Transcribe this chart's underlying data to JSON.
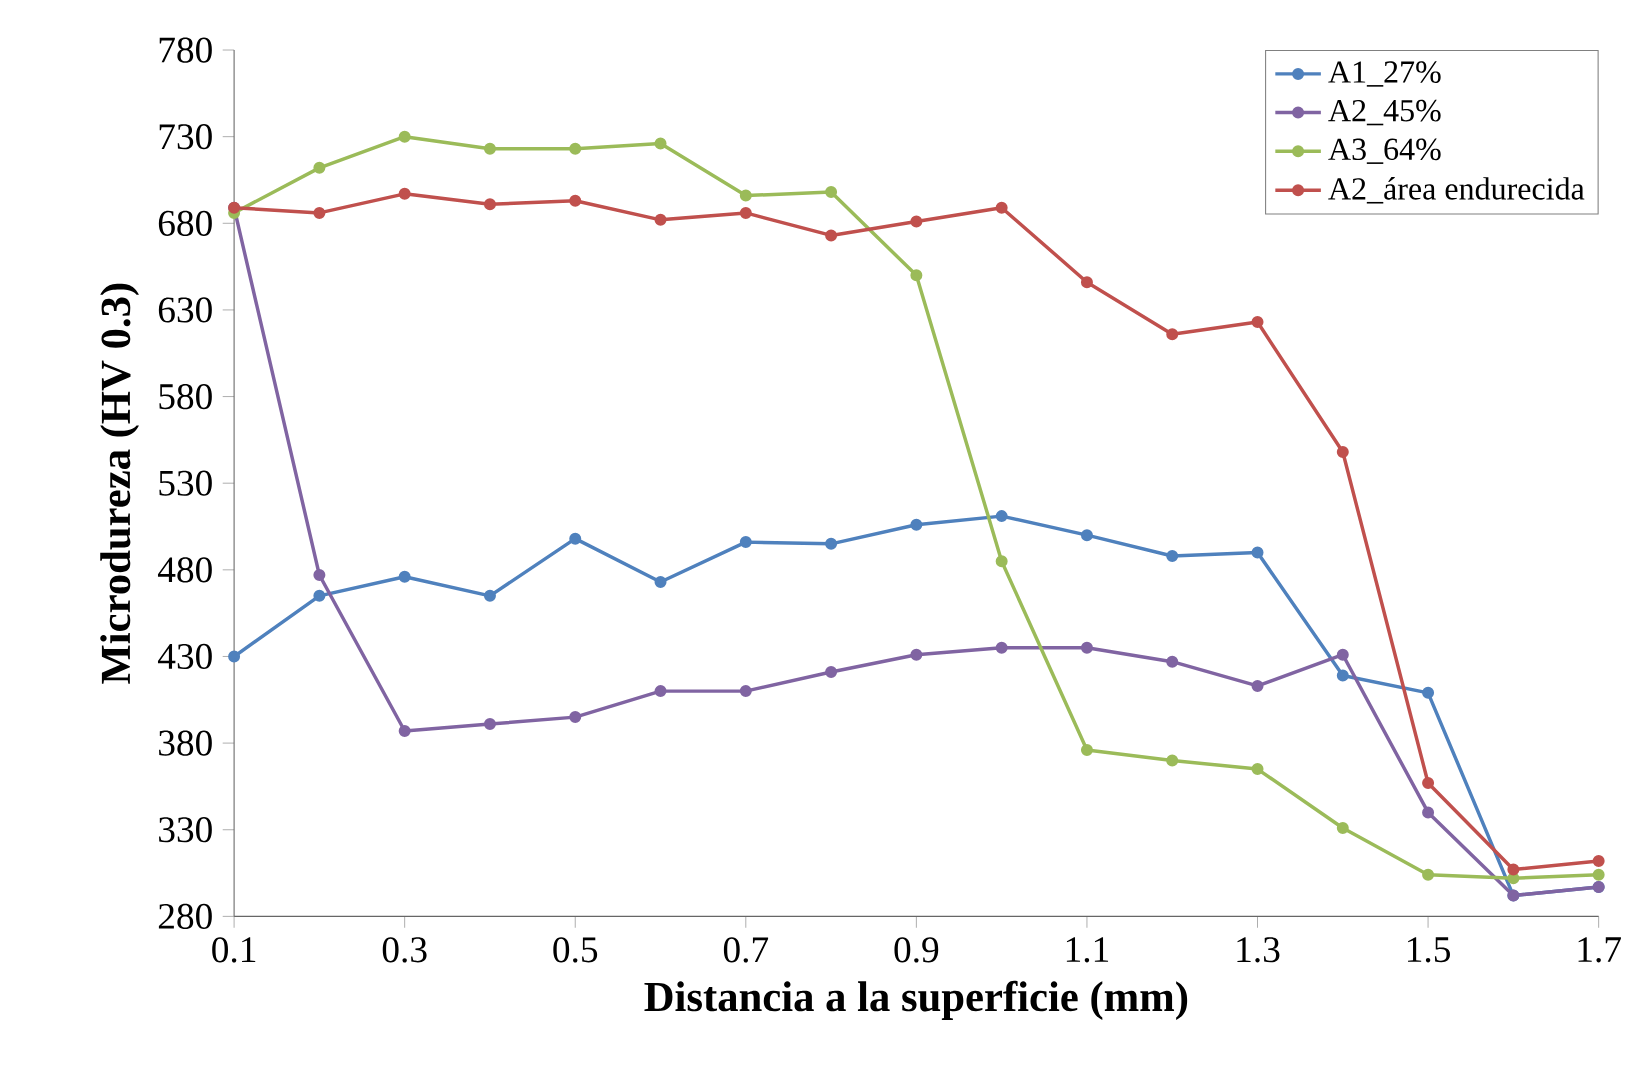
{
  "chart_data": {
    "type": "line",
    "xlabel": "Distancia a la superficie (mm)",
    "ylabel": "Microdureza (HV 0.3)",
    "x": [
      0.1,
      0.2,
      0.3,
      0.4,
      0.5,
      0.6,
      0.7,
      0.8,
      0.9,
      1.0,
      1.1,
      1.2,
      1.3,
      1.4,
      1.5,
      1.6,
      1.7
    ],
    "series": [
      {
        "name": "A1_27%",
        "color": "#4f81bd",
        "values": [
          430,
          465,
          476,
          465,
          498,
          473,
          496,
          495,
          506,
          511,
          500,
          488,
          490,
          419,
          409,
          292,
          297
        ]
      },
      {
        "name": "A2_45%",
        "color": "#8064a2",
        "values": [
          689,
          477,
          387,
          391,
          395,
          410,
          410,
          421,
          431,
          435,
          435,
          427,
          413,
          431,
          340,
          292,
          297
        ]
      },
      {
        "name": "A3_64%",
        "color": "#9bbb59",
        "values": [
          686,
          712,
          730,
          723,
          723,
          726,
          696,
          698,
          650,
          485,
          376,
          370,
          365,
          331,
          304,
          302,
          304
        ]
      },
      {
        "name": "A2_área endurecida",
        "color": "#c0504d",
        "values": [
          689,
          686,
          697,
          691,
          693,
          682,
          686,
          673,
          681,
          689,
          646,
          616,
          623,
          548,
          357,
          307,
          312
        ]
      }
    ],
    "xlim": [
      0.1,
      1.7
    ],
    "ylim": [
      280,
      780
    ],
    "xticks": [
      0.1,
      0.3,
      0.5,
      0.7,
      0.9,
      1.1,
      1.3,
      1.5,
      1.7
    ],
    "yticks": [
      280,
      330,
      380,
      430,
      480,
      530,
      580,
      630,
      680,
      730,
      780
    ],
    "grid": false,
    "legend": "top right",
    "marker": "circle",
    "line_style": "solid"
  }
}
